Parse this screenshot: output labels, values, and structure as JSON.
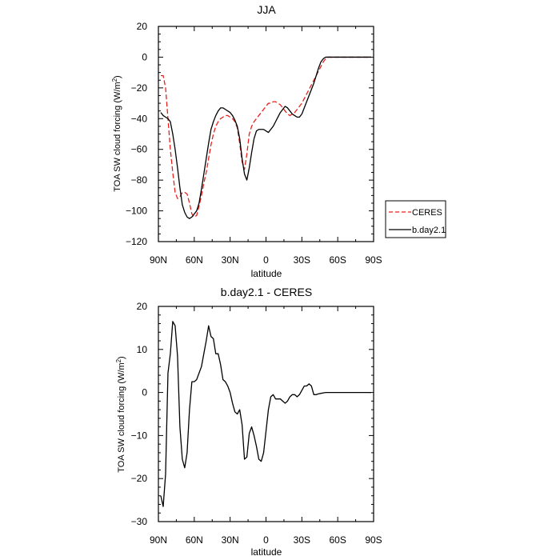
{
  "chart_data": [
    {
      "type": "line",
      "title": "JJA",
      "xlabel": "latitude",
      "ylabel_main": "TOA SW cloud forcing (W/m",
      "ylabel_sup": "2",
      "ylabel_close": ")",
      "xlim": [
        90,
        -90
      ],
      "ylim": [
        -120,
        20
      ],
      "x_ticks": [
        90,
        60,
        30,
        0,
        -30,
        -60,
        -90
      ],
      "x_tick_labels": [
        "90N",
        "60N",
        "30N",
        "0",
        "30S",
        "60S",
        "90S"
      ],
      "y_ticks": [
        -120,
        -100,
        -80,
        -60,
        -40,
        -20,
        0,
        20
      ],
      "y_tick_labels": [
        "−120",
        "−100",
        "−80",
        "−60",
        "−40",
        "−20",
        "0",
        "20"
      ],
      "legend": "outside-right",
      "series": [
        {
          "name": "CERES",
          "color": "#e8201c",
          "dash": "dashed",
          "x": [
            88,
            86,
            84,
            82,
            80,
            78,
            76,
            74,
            72,
            70,
            68,
            66,
            64,
            62,
            60,
            58,
            56,
            54,
            52,
            50,
            48,
            46,
            44,
            42,
            40,
            38,
            36,
            34,
            32,
            30,
            28,
            26,
            24,
            22,
            20,
            18,
            16,
            14,
            12,
            10,
            8,
            6,
            4,
            2,
            0,
            -2,
            -4,
            -6,
            -8,
            -10,
            -12,
            -14,
            -16,
            -18,
            -20,
            -22,
            -24,
            -26,
            -28,
            -30,
            -32,
            -34,
            -36,
            -38,
            -40,
            -42,
            -44,
            -46,
            -48,
            -50,
            -52,
            -54,
            -56,
            -58,
            -60,
            -62,
            -64,
            -66,
            -68,
            -70,
            -72,
            -74,
            -76,
            -78,
            -80,
            -82,
            -84,
            -86,
            -88
          ],
          "y": [
            -12,
            -12,
            -20,
            -40,
            -60,
            -75,
            -88,
            -92,
            -91,
            -88,
            -88,
            -89,
            -95,
            -102,
            -104,
            -103,
            -97,
            -90,
            -82,
            -75,
            -66,
            -57,
            -50,
            -45,
            -42,
            -40,
            -39,
            -38,
            -38,
            -39,
            -40,
            -42,
            -46,
            -56,
            -68,
            -73,
            -63,
            -50,
            -45,
            -42,
            -40,
            -38,
            -36,
            -34,
            -32,
            -30,
            -30,
            -29,
            -29,
            -30,
            -31,
            -33,
            -35,
            -37,
            -38,
            -37,
            -36,
            -34,
            -32,
            -30,
            -27,
            -24,
            -21,
            -18,
            -15,
            -12,
            -9,
            -6,
            -3,
            -1,
            0,
            0,
            0,
            0,
            0,
            0,
            0,
            0,
            0,
            0,
            0,
            0,
            0,
            0,
            0,
            0,
            0,
            0,
            0
          ]
        },
        {
          "name": "b.day2.1",
          "color": "#000000",
          "dash": "solid",
          "x": [
            88,
            86,
            84,
            82,
            80,
            78,
            76,
            74,
            72,
            70,
            68,
            66,
            64,
            62,
            60,
            58,
            56,
            54,
            52,
            50,
            48,
            46,
            44,
            42,
            40,
            38,
            36,
            34,
            32,
            30,
            28,
            26,
            24,
            22,
            20,
            18,
            16,
            14,
            12,
            10,
            8,
            6,
            4,
            2,
            0,
            -2,
            -4,
            -6,
            -8,
            -10,
            -12,
            -14,
            -16,
            -18,
            -20,
            -22,
            -24,
            -26,
            -28,
            -30,
            -32,
            -34,
            -36,
            -38,
            -40,
            -42,
            -44,
            -46,
            -48,
            -50,
            -52,
            -54,
            -56,
            -58,
            -60,
            -62,
            -64,
            -66,
            -68,
            -70,
            -72,
            -74,
            -76,
            -78,
            -80,
            -82,
            -84,
            -86,
            -88
          ],
          "y": [
            -36,
            -38,
            -39,
            -40,
            -42,
            -50,
            -60,
            -72,
            -85,
            -96,
            -101,
            -104,
            -105,
            -104,
            -102,
            -100,
            -95,
            -86,
            -76,
            -66,
            -56,
            -47,
            -42,
            -38,
            -35,
            -33,
            -33,
            -34,
            -35,
            -36,
            -38,
            -41,
            -45,
            -53,
            -66,
            -76,
            -80,
            -72,
            -62,
            -53,
            -48,
            -47,
            -47,
            -47,
            -48,
            -49,
            -47,
            -45,
            -42,
            -39,
            -36,
            -34,
            -32,
            -33,
            -35,
            -37,
            -38,
            -39,
            -39,
            -37,
            -33,
            -29,
            -25,
            -21,
            -17,
            -12,
            -7,
            -3,
            -1,
            0,
            0,
            0,
            0,
            0,
            0,
            0,
            0,
            0,
            0,
            0,
            0,
            0,
            0,
            0,
            0,
            0,
            0,
            0,
            0
          ]
        }
      ]
    },
    {
      "type": "line",
      "title": "b.day2.1 - CERES",
      "xlabel": "latitude",
      "ylabel_main": "TOA SW cloud forcing (W/m",
      "ylabel_sup": "2",
      "ylabel_close": ")",
      "xlim": [
        90,
        -90
      ],
      "ylim": [
        -30,
        20
      ],
      "x_ticks": [
        90,
        60,
        30,
        0,
        -30,
        -60,
        -90
      ],
      "x_tick_labels": [
        "90N",
        "60N",
        "30N",
        "0",
        "30S",
        "60S",
        "90S"
      ],
      "y_ticks": [
        -30,
        -20,
        -10,
        0,
        10,
        20
      ],
      "y_tick_labels": [
        "−30",
        "−20",
        "−10",
        "0",
        "10",
        "20"
      ],
      "series": [
        {
          "color": "#000000",
          "dash": "solid",
          "x": [
            88,
            86,
            84,
            82,
            80,
            78,
            76,
            74,
            72,
            70,
            68,
            66,
            64,
            62,
            60,
            58,
            56,
            54,
            52,
            50,
            48,
            46,
            44,
            42,
            40,
            38,
            36,
            34,
            32,
            30,
            28,
            26,
            24,
            22,
            20,
            18,
            16,
            14,
            12,
            10,
            8,
            6,
            4,
            2,
            0,
            -2,
            -4,
            -6,
            -8,
            -10,
            -12,
            -14,
            -16,
            -18,
            -20,
            -22,
            -24,
            -26,
            -28,
            -30,
            -32,
            -34,
            -36,
            -38,
            -40,
            -42,
            -44,
            -46,
            -48,
            -50,
            -52,
            -54,
            -56,
            -58,
            -60,
            -62,
            -64,
            -66,
            -68,
            -70,
            -72,
            -74,
            -76,
            -78,
            -80,
            -82,
            -84,
            -86,
            -88
          ],
          "y": [
            -24,
            -26.5,
            -19,
            4.5,
            9,
            16.5,
            15.5,
            8.5,
            -8,
            -15.5,
            -17.5,
            -14,
            -4,
            2.5,
            2.5,
            3,
            4.5,
            6,
            9,
            12,
            15.5,
            13,
            12.5,
            9,
            9,
            6.5,
            3,
            2.5,
            1.5,
            0,
            -2.5,
            -4.5,
            -5,
            -4,
            -7.5,
            -15.5,
            -15,
            -9.5,
            -8,
            -10,
            -12.5,
            -15.5,
            -16,
            -14,
            -9,
            -4,
            -1,
            -0.5,
            -1.5,
            -1.5,
            -1.5,
            -2,
            -2.5,
            -2,
            -1,
            -0.5,
            -0.5,
            -1,
            -0.5,
            0.5,
            1.5,
            1.5,
            2,
            1.5,
            -0.5,
            -0.5,
            -0.3,
            -0.2,
            -0.1,
            0,
            0,
            0,
            0,
            0,
            0,
            0,
            0,
            0,
            0,
            0,
            0,
            0,
            0,
            0,
            0,
            0,
            0,
            0,
            0
          ]
        }
      ]
    }
  ]
}
